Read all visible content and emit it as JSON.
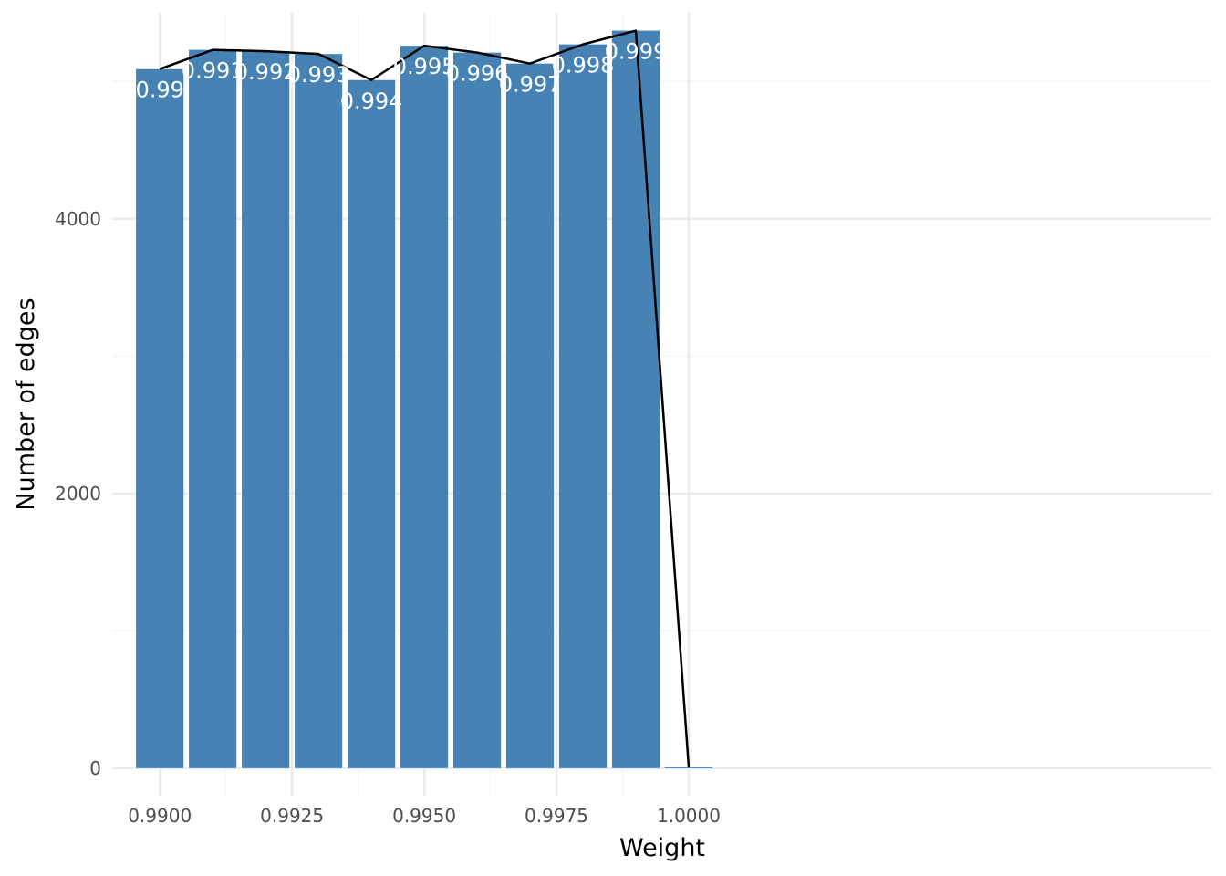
{
  "chart_data": {
    "type": "bar",
    "x": [
      0.99,
      0.991,
      0.992,
      0.993,
      0.994,
      0.995,
      0.996,
      0.997,
      0.998,
      0.999,
      1.0
    ],
    "values": [
      5090,
      5230,
      5220,
      5200,
      5010,
      5260,
      5210,
      5130,
      5270,
      5370,
      10
    ],
    "bar_labels": [
      "0.99",
      "0.991",
      "0.992",
      "0.993",
      "0.994",
      "0.995",
      "0.996",
      "0.997",
      "0.998",
      "0.999",
      ""
    ],
    "line": {
      "x": [
        0.99,
        0.991,
        0.992,
        0.993,
        0.994,
        0.995,
        0.996,
        0.997,
        0.998,
        0.999,
        1.0
      ],
      "y": [
        5090,
        5230,
        5220,
        5200,
        5010,
        5260,
        5210,
        5130,
        5270,
        5370,
        10
      ]
    },
    "xlabel": "Weight",
    "ylabel": "Number of edges",
    "xlim": [
      0.9891,
      1.0099
    ],
    "ylim": [
      -200,
      5500
    ],
    "x_ticks": [
      0.99,
      0.9925,
      0.995,
      0.9975,
      1.0
    ],
    "x_tick_labels": [
      "0.9900",
      "0.9925",
      "0.9950",
      "0.9975",
      "1.0000"
    ],
    "y_ticks": [
      0,
      2000,
      4000
    ],
    "y_tick_labels": [
      "0",
      "2000",
      "4000"
    ],
    "grid": true,
    "colors": {
      "bar": "#4682b4",
      "line": "#000000",
      "grid_major": "#ebebeb",
      "grid_minor": "#f5f5f5",
      "tick_text": "#4d4d4d",
      "bar_label": "#ffffff"
    }
  }
}
